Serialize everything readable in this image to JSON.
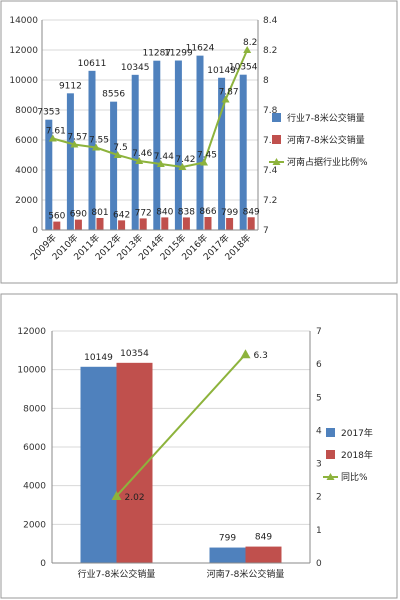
{
  "chart_data": [
    {
      "type": "bar",
      "categories": [
        "2009年",
        "2010年",
        "2011年",
        "2012年",
        "2013年",
        "2014年",
        "2015年",
        "2016年",
        "2017年",
        "2018年"
      ],
      "series": [
        {
          "name": "行业7-8米公交销量",
          "type": "bar",
          "axis": "left",
          "color": "#4f81bd",
          "values": [
            7353,
            9112,
            10611,
            8556,
            10345,
            11287,
            11299,
            11624,
            10149,
            10354
          ]
        },
        {
          "name": "河南7-8米公交销量",
          "type": "bar",
          "axis": "left",
          "color": "#c0504d",
          "values": [
            560,
            690,
            801,
            642,
            772,
            840,
            838,
            866,
            799,
            849
          ]
        },
        {
          "name": "河南占据行业比例%",
          "type": "line",
          "axis": "right",
          "color": "#8db33c",
          "values": [
            7.61,
            7.57,
            7.55,
            7.5,
            7.46,
            7.44,
            7.42,
            7.45,
            7.87,
            8.2
          ]
        }
      ],
      "ylim": [
        0,
        14000
      ],
      "yticks": [
        0,
        2000,
        4000,
        6000,
        8000,
        10000,
        12000,
        14000
      ],
      "y2lim": [
        7,
        8.4
      ],
      "y2ticks": [
        "7",
        "7.2",
        "7.4",
        "7.6",
        "7.8",
        "8",
        "8.2",
        "8.4"
      ],
      "legend_position": "right"
    },
    {
      "type": "bar",
      "categories": [
        "行业7-8米公交销量",
        "河南7-8米公交销量"
      ],
      "series": [
        {
          "name": "2017年",
          "type": "bar",
          "axis": "left",
          "color": "#4f81bd",
          "values": [
            10149,
            799
          ]
        },
        {
          "name": "2018年",
          "type": "bar",
          "axis": "left",
          "color": "#c0504d",
          "values": [
            10354,
            849
          ]
        },
        {
          "name": "同比%",
          "type": "line",
          "axis": "right",
          "color": "#8db33c",
          "values": [
            2.02,
            6.3
          ]
        }
      ],
      "ylim": [
        0,
        12000
      ],
      "yticks": [
        0,
        2000,
        4000,
        6000,
        8000,
        10000,
        12000
      ],
      "y2lim": [
        0,
        7
      ],
      "y2ticks": [
        0,
        1,
        2,
        3,
        4,
        5,
        6,
        7
      ],
      "legend_position": "right"
    }
  ]
}
